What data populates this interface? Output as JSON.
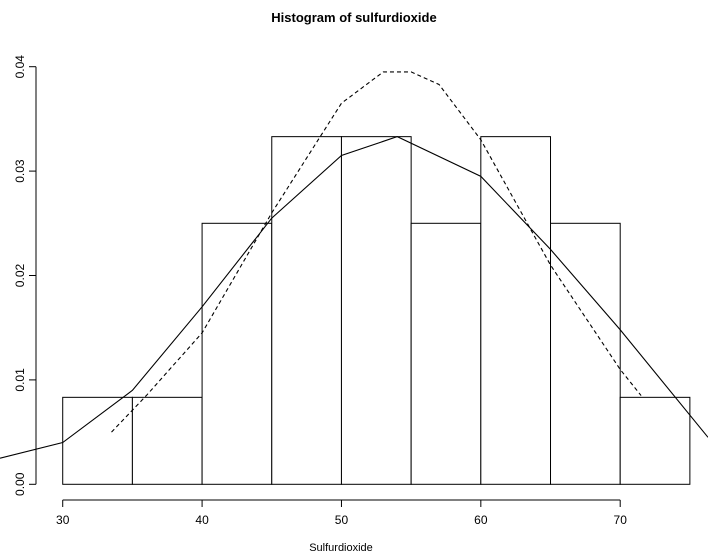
{
  "chart_data": {
    "type": "histogram",
    "title": "Histogram of sulfurdioxide",
    "x_label": "Sulfurdioxide",
    "bins": [
      30,
      35,
      40,
      45,
      50,
      55,
      60,
      65,
      70,
      75
    ],
    "values": [
      0.00833,
      0.00833,
      0.025,
      0.0333,
      0.0333,
      0.025,
      0.0333,
      0.025,
      0.00833
    ],
    "color": "#ffffff",
    "edge_color": "#000000",
    "xlim": [
      25.5,
      76.3
    ],
    "xticks": [
      30,
      40,
      50,
      60,
      70
    ],
    "ylim": [
      -0.0016,
      0.0416
    ],
    "yticks": [
      {
        "value": 0,
        "label": "0.00"
      },
      {
        "value": 0.01,
        "label": "0.01"
      },
      {
        "value": 0.02,
        "label": "0.02"
      },
      {
        "value": 0.03,
        "label": "0.03"
      },
      {
        "value": 0.04,
        "label": "0.04"
      }
    ],
    "lines": [
      {
        "style": "solid",
        "color": "#000000",
        "x": [
          25.5,
          30,
          35,
          40,
          45,
          50,
          54,
          60,
          65,
          70,
          76.3
        ],
        "values": [
          0.0025,
          0.004,
          0.009,
          0.017,
          0.0255,
          0.0315,
          0.0333,
          0.0295,
          0.0225,
          0.0148,
          0.0045
        ]
      },
      {
        "style": "dashed",
        "color": "#000000",
        "x": [
          33.5,
          36,
          40,
          45,
          50,
          53,
          55,
          57,
          60,
          65,
          70,
          71.5
        ],
        "values": [
          0.005,
          0.0085,
          0.0145,
          0.026,
          0.0365,
          0.0395,
          0.0395,
          0.0383,
          0.033,
          0.021,
          0.011,
          0.0085
        ]
      }
    ]
  }
}
